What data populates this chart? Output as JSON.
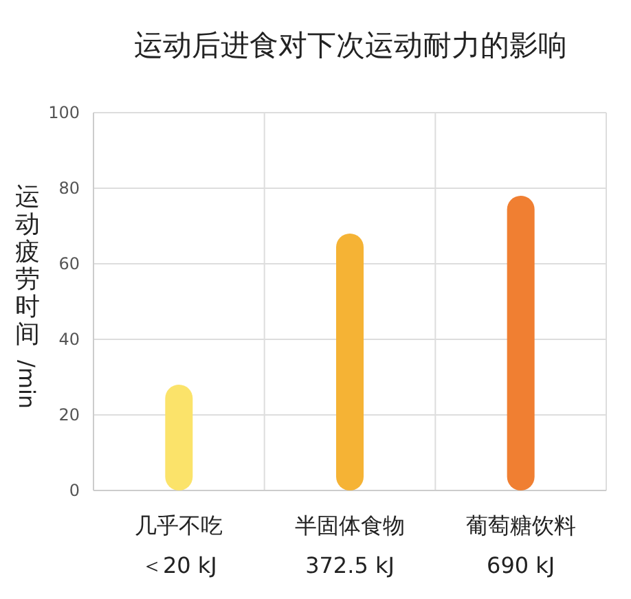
{
  "chart_data": {
    "type": "bar",
    "title": "运动后进食对下次运动耐力的影响",
    "ylabel": "运动疲劳时间/min",
    "categories": [
      "几乎不吃",
      "半固体食物",
      "葡萄糖饮料"
    ],
    "values": [
      28,
      68,
      78
    ],
    "colors": [
      "#fbe36a",
      "#f5b335",
      "#f07f32"
    ],
    "ylim": [
      0,
      100
    ],
    "yticks": [
      0,
      20,
      40,
      60,
      80,
      100
    ],
    "grid": true,
    "annotations": [
      "＜20 kJ",
      "372.5 kJ",
      "690 kJ"
    ]
  }
}
